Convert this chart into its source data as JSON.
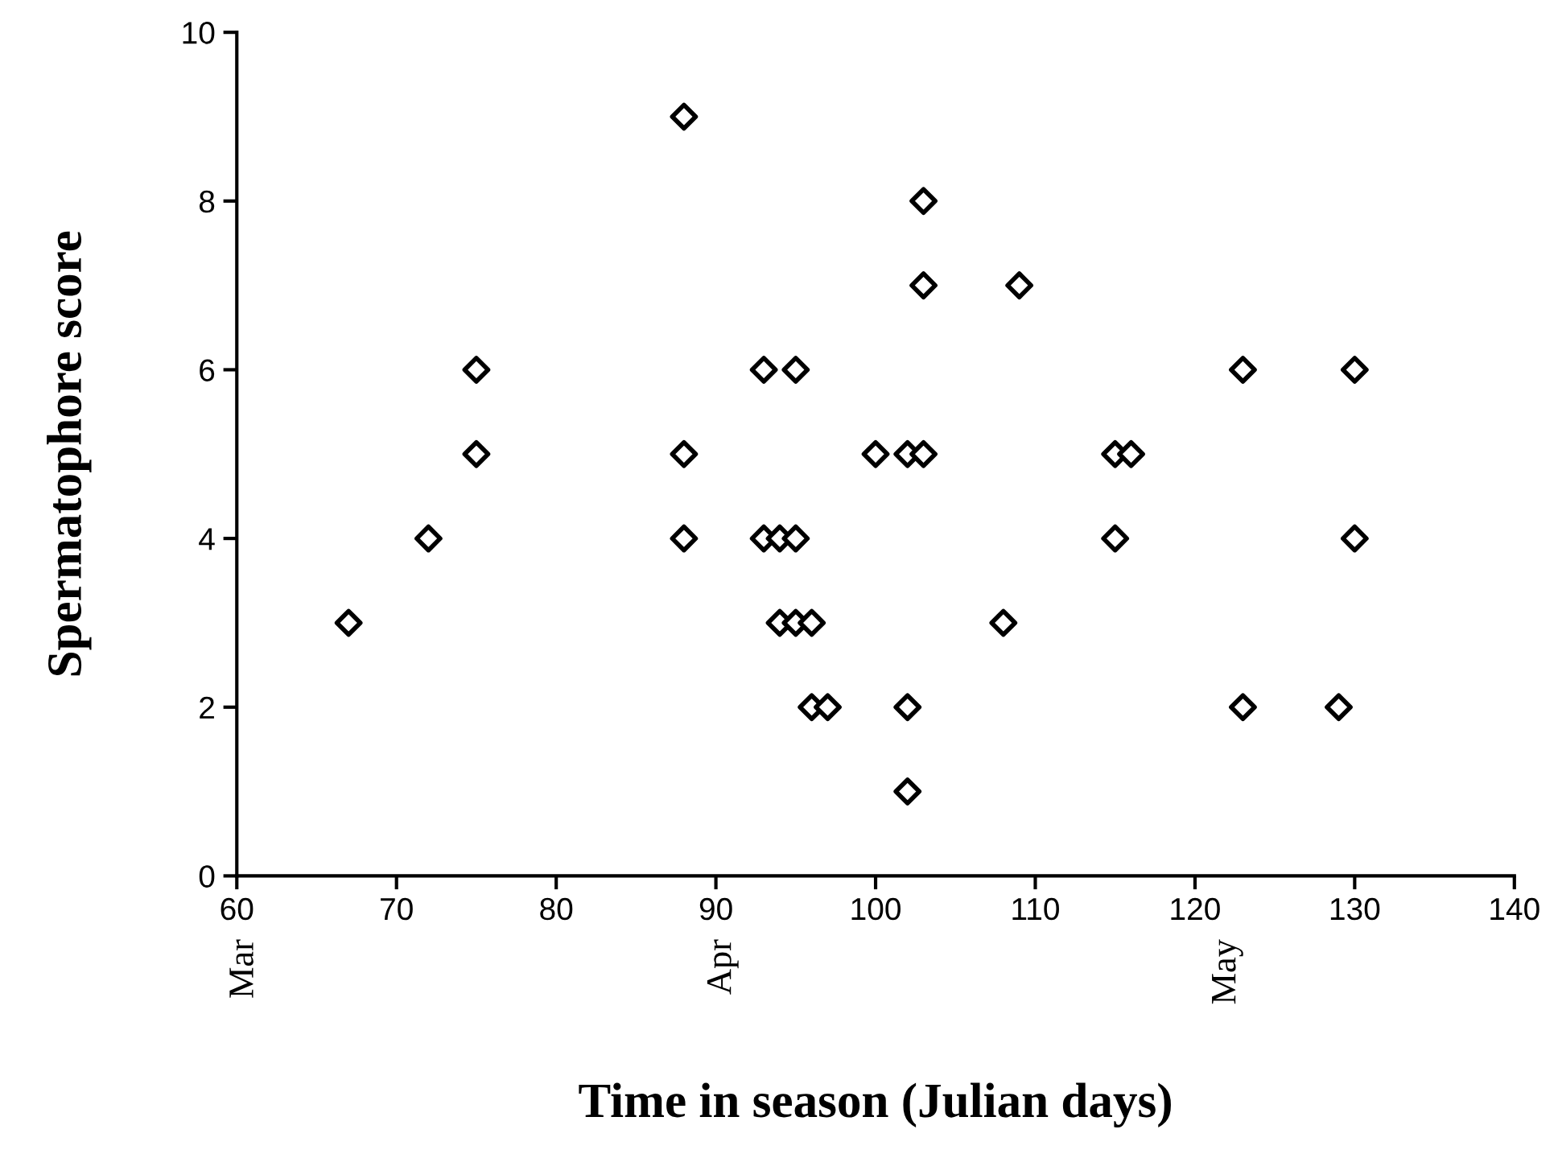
{
  "chart_data": {
    "type": "scatter",
    "xlabel": "Time in season (Julian days)",
    "ylabel": "Spermatophore score",
    "x": [
      67,
      72,
      75,
      75,
      88,
      88,
      88,
      93,
      95,
      93,
      94,
      95,
      94,
      95,
      96,
      96,
      97,
      100,
      102,
      103,
      103,
      103,
      102,
      102,
      108,
      109,
      115,
      116,
      115,
      123,
      123,
      129,
      130,
      130
    ],
    "values": [
      3,
      4,
      6,
      5,
      9,
      5,
      4,
      6,
      6,
      4,
      4,
      4,
      3,
      3,
      3,
      2,
      2,
      5,
      5,
      5,
      8,
      7,
      2,
      1,
      3,
      7,
      5,
      5,
      4,
      6,
      2,
      2,
      6,
      4
    ],
    "color": "#000000",
    "marker": "diamond",
    "grid": false,
    "legend": false,
    "xlim": [
      60,
      140
    ],
    "xticks": [
      60,
      70,
      80,
      90,
      100,
      110,
      120,
      130,
      140
    ],
    "ylim": [
      0,
      10
    ],
    "yticks": [
      0,
      2,
      4,
      6,
      8,
      10
    ],
    "annotations": [
      "Mar",
      "Apr",
      "May"
    ]
  }
}
